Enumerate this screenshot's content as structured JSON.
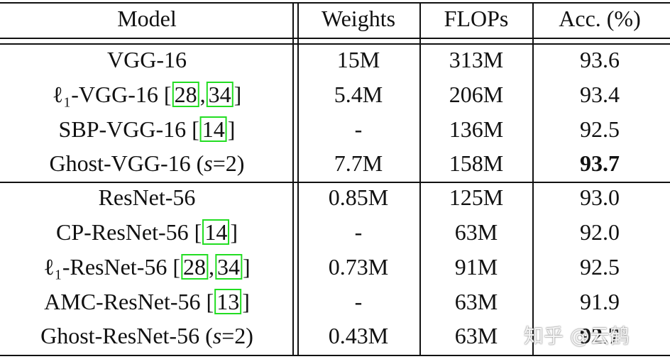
{
  "headers": [
    "Model",
    "Weights",
    "FLOPs",
    "Acc. (%)"
  ],
  "groups": [
    [
      {
        "model_pre": "VGG-16",
        "cites": [],
        "model_post": "",
        "weights": "15M",
        "flops": "313M",
        "acc": "93.6",
        "bold": false
      },
      {
        "model_pre": "ℓ₁-VGG-16 [",
        "cites": [
          "28",
          "34"
        ],
        "model_post": "]",
        "weights": "5.4M",
        "flops": "206M",
        "acc": "93.4",
        "bold": false
      },
      {
        "model_pre": "SBP-VGG-16 [",
        "cites": [
          "14"
        ],
        "model_post": "]",
        "weights": "-",
        "flops": "136M",
        "acc": "92.5",
        "bold": false
      },
      {
        "model_pre": "Ghost-VGG-16 (",
        "param": "s",
        "model_post": "=2)",
        "cites": [],
        "weights": "7.7M",
        "flops": "158M",
        "acc": "93.7",
        "bold": true
      }
    ],
    [
      {
        "model_pre": "ResNet-56",
        "cites": [],
        "model_post": "",
        "weights": "0.85M",
        "flops": "125M",
        "acc": "93.0",
        "bold": false
      },
      {
        "model_pre": "CP-ResNet-56 [",
        "cites": [
          "14"
        ],
        "model_post": "]",
        "weights": "-",
        "flops": "63M",
        "acc": "92.0",
        "bold": false
      },
      {
        "model_pre": "ℓ₁-ResNet-56 [",
        "cites": [
          "28",
          "34"
        ],
        "model_post": "]",
        "weights": "0.73M",
        "flops": "91M",
        "acc": "92.5",
        "bold": false
      },
      {
        "model_pre": "AMC-ResNet-56 [",
        "cites": [
          "13"
        ],
        "model_post": "]",
        "weights": "-",
        "flops": "63M",
        "acc": "91.9",
        "bold": false
      },
      {
        "model_pre": "Ghost-ResNet-56 (",
        "param": "s",
        "model_post": "=2)",
        "cites": [],
        "weights": "0.43M",
        "flops": "63M",
        "acc": "92.7",
        "bold": true
      }
    ]
  ],
  "watermark": "知乎 @云鹤"
}
